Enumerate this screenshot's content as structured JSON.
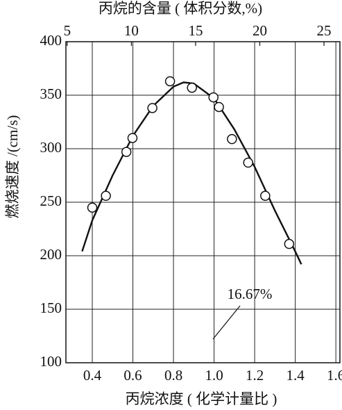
{
  "chart_data": {
    "type": "scatter",
    "title": "丙烷的含量 ( 体积分数,%)",
    "x_label": "丙烷浓度 ( 化学计量比 )",
    "y_label": "燃烧速度 /(cm/s)",
    "annotation": "16.67%",
    "x": [
      0.4,
      0.467,
      0.568,
      0.598,
      0.696,
      0.783,
      0.891,
      0.997,
      1.024,
      1.088,
      1.168,
      1.252,
      1.37
    ],
    "values": [
      245,
      256,
      297,
      310,
      338,
      363,
      357,
      348,
      339,
      309,
      287,
      256,
      211
    ],
    "curve": {
      "x": [
        0.35,
        0.4,
        0.5,
        0.6,
        0.7,
        0.8,
        0.85,
        0.9,
        1.0,
        1.1,
        1.2,
        1.3,
        1.4,
        1.43
      ],
      "values": [
        204,
        233,
        275,
        312,
        340,
        358,
        362,
        361,
        347,
        318,
        283,
        242,
        204,
        192
      ]
    },
    "xlim": [
      0.27,
      1.62
    ],
    "xticks": [
      0.4,
      0.6,
      0.8,
      {
        "value": 1,
        "label": "1.0"
      },
      1.2,
      1.4,
      1.6
    ],
    "x2lim": [
      4.9,
      26.24
    ],
    "x2ticks": [
      5,
      10,
      15,
      20,
      25
    ],
    "ylim": [
      100,
      400
    ],
    "yticks": [
      100,
      150,
      200,
      250,
      300,
      350,
      400
    ],
    "grid": true
  }
}
